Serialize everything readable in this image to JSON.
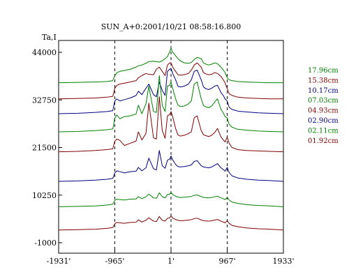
{
  "chart_data": {
    "type": "line",
    "title": "SUN_A+0:2001/10/21 08:58:16.800",
    "ylabel": "Ta,I",
    "xlabel": "",
    "x_ticks": [
      "-1931'",
      "-965'",
      "1'",
      "967'",
      "1933'"
    ],
    "y_ticks": [
      "44000",
      "32750",
      "21500",
      "10250",
      "-1000"
    ],
    "ylim": [
      -1000,
      47000
    ],
    "xlim": [
      -1931,
      1933
    ],
    "vlines": [
      -965,
      1,
      967
    ],
    "grid": false,
    "legend_position": "right",
    "x": [
      -1931,
      -1600,
      -1300,
      -1100,
      -1000,
      -965,
      -930,
      -880,
      -800,
      -700,
      -600,
      -560,
      -500,
      -430,
      -380,
      -300,
      -250,
      -200,
      -150,
      -100,
      -60,
      -20,
      1,
      30,
      80,
      120,
      160,
      230,
      300,
      350,
      400,
      450,
      520,
      560,
      600,
      650,
      700,
      750,
      800,
      860,
      900,
      930,
      967,
      1000,
      1050,
      1150,
      1300,
      1500,
      1700,
      1933
    ],
    "series": [
      {
        "name": "17.96cm",
        "color": "#008000",
        "values": [
          36800,
          36900,
          37000,
          37100,
          37300,
          38500,
          39200,
          39500,
          39700,
          40000,
          40500,
          40800,
          41000,
          41400,
          41800,
          41900,
          41800,
          41700,
          42000,
          42500,
          43000,
          44200,
          45000,
          44000,
          43200,
          42500,
          42000,
          41500,
          41400,
          41600,
          42300,
          42800,
          42500,
          41500,
          41200,
          41000,
          41200,
          41500,
          41300,
          40500,
          39800,
          39200,
          38000,
          37500,
          37300,
          37100,
          37000,
          36900,
          36800,
          36800
        ]
      },
      {
        "name": "15.38cm",
        "color": "#800000",
        "values": [
          33000,
          33100,
          33200,
          33400,
          33600,
          35500,
          36200,
          36500,
          36700,
          37000,
          37300,
          38000,
          38500,
          39000,
          38800,
          38700,
          40000,
          40500,
          39500,
          38500,
          41000,
          41500,
          41500,
          40500,
          39500,
          38700,
          38600,
          38700,
          39000,
          39800,
          41000,
          41500,
          40500,
          39200,
          38900,
          38700,
          38800,
          39200,
          39000,
          38300,
          37500,
          36800,
          35500,
          34200,
          33800,
          33400,
          33200,
          33100,
          33000,
          33000
        ]
      },
      {
        "name": "10.17cm",
        "color": "#000080",
        "values": [
          29500,
          29600,
          29800,
          30000,
          30200,
          32500,
          33000,
          32500,
          32800,
          33200,
          33800,
          34800,
          34000,
          35500,
          36500,
          34000,
          33500,
          37000,
          35000,
          33800,
          39500,
          40000,
          40200,
          39000,
          37500,
          36000,
          35800,
          36000,
          36500,
          37500,
          39500,
          39800,
          37500,
          35800,
          35400,
          35200,
          35500,
          36000,
          36200,
          34500,
          33800,
          33000,
          32500,
          31000,
          30500,
          30100,
          29900,
          29700,
          29600,
          29500
        ]
      },
      {
        "name": "07.03cm",
        "color": "#008000",
        "values": [
          25200,
          25300,
          25500,
          25700,
          25900,
          28500,
          29200,
          28300,
          28800,
          29000,
          29400,
          31500,
          29500,
          31800,
          36000,
          30000,
          29800,
          38500,
          31500,
          30000,
          36000,
          36200,
          37000,
          35500,
          33000,
          31500,
          31200,
          31300,
          31800,
          32500,
          36500,
          37000,
          33000,
          31400,
          31100,
          30900,
          31300,
          32200,
          33000,
          30500,
          29700,
          28800,
          28500,
          27000,
          26300,
          25800,
          25600,
          25400,
          25300,
          25200
        ]
      },
      {
        "name": "04.93cm",
        "color": "#800000",
        "values": [
          20500,
          20600,
          20800,
          21000,
          21200,
          23000,
          23500,
          23200,
          22000,
          22500,
          23000,
          25200,
          23300,
          24800,
          32000,
          23800,
          23500,
          33500,
          25500,
          23700,
          29000,
          29300,
          30000,
          28800,
          26000,
          24500,
          24200,
          24400,
          24800,
          25200,
          28500,
          29000,
          25500,
          24500,
          24300,
          24100,
          24400,
          25000,
          26000,
          24000,
          23300,
          22800,
          24000,
          22500,
          21500,
          21000,
          20800,
          20700,
          20600,
          20500
        ]
      },
      {
        "name": "02.90cm",
        "color": "#000080",
        "values": [
          13500,
          13600,
          13800,
          14000,
          14200,
          15500,
          16000,
          15800,
          15500,
          15800,
          15900,
          16800,
          16000,
          16700,
          19000,
          16500,
          16200,
          20800,
          17200,
          16600,
          18500,
          18800,
          19500,
          18600,
          17500,
          17000,
          16900,
          17000,
          17200,
          17400,
          18200,
          18400,
          17200,
          16900,
          16800,
          16700,
          16900,
          17300,
          17700,
          16700,
          16300,
          15900,
          16800,
          15600,
          14800,
          14300,
          14000,
          13800,
          13700,
          13500
        ]
      },
      {
        "name": "02.11cm",
        "color": "#008000",
        "values": [
          7500,
          7600,
          7700,
          7900,
          8100,
          9000,
          9300,
          9200,
          9100,
          9300,
          9350,
          9900,
          9400,
          9850,
          10500,
          9600,
          9500,
          10800,
          9900,
          9600,
          10400,
          10500,
          10900,
          10400,
          10000,
          9800,
          9700,
          9750,
          9850,
          9950,
          10200,
          10300,
          9900,
          9700,
          9650,
          9600,
          9700,
          9850,
          10000,
          9600,
          9400,
          9200,
          9700,
          9100,
          8600,
          8300,
          8000,
          7800,
          7700,
          7500
        ]
      },
      {
        "name": "01.92cm",
        "color": "#800000",
        "values": [
          2000,
          2100,
          2200,
          2400,
          2600,
          3500,
          3800,
          3700,
          3600,
          3800,
          3850,
          4400,
          3900,
          4300,
          4900,
          4100,
          4000,
          5200,
          4300,
          4100,
          4800,
          4900,
          5400,
          4800,
          4500,
          4300,
          4200,
          4250,
          4350,
          4450,
          4700,
          4800,
          4400,
          4200,
          4150,
          4100,
          4200,
          4350,
          4500,
          4100,
          3900,
          3700,
          4200,
          3600,
          3100,
          2800,
          2500,
          2300,
          2200,
          2000
        ]
      }
    ]
  }
}
